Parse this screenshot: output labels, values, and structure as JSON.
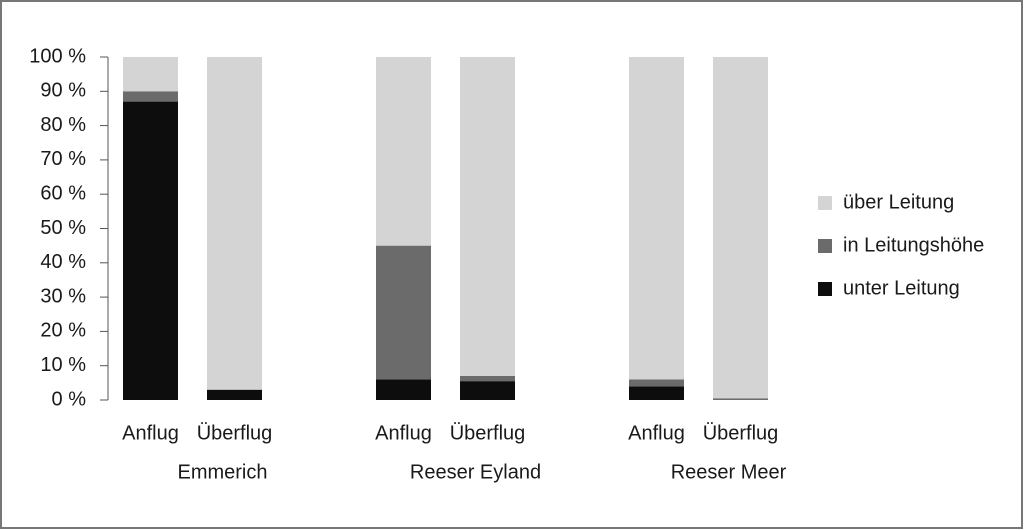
{
  "chart_data": {
    "type": "stacked_bar",
    "categories": [
      "Anflug",
      "Überflug",
      "Anflug",
      "Überflug",
      "Anflug",
      "Überflug"
    ],
    "groups": [
      "Emmerich",
      "Reeser Eyland",
      "Reeser Meer"
    ],
    "series": [
      {
        "name": "unter Leitung",
        "color": "#0d0d0d",
        "values": [
          87,
          3,
          6,
          5.5,
          4,
          0
        ]
      },
      {
        "name": "in Leitungshöhe",
        "color": "#6b6b6b",
        "values": [
          3,
          0,
          39,
          1.5,
          2,
          0.5
        ]
      },
      {
        "name": "über Leitung",
        "color": "#d4d4d4",
        "values": [
          10,
          97,
          55,
          93,
          94,
          99.5
        ]
      }
    ],
    "ylim": [
      0,
      100
    ],
    "yticks": [
      {
        "value": 0,
        "label": "0 %"
      },
      {
        "value": 10,
        "label": "10 %"
      },
      {
        "value": 20,
        "label": "20 %"
      },
      {
        "value": 30,
        "label": "30 %"
      },
      {
        "value": 40,
        "label": "40 %"
      },
      {
        "value": 50,
        "label": "50 %"
      },
      {
        "value": 60,
        "label": "60 %"
      },
      {
        "value": 70,
        "label": "70 %"
      },
      {
        "value": 80,
        "label": "80 %"
      },
      {
        "value": 90,
        "label": "90 %"
      },
      {
        "value": {
          "value": 100,
          "label": "100 %"
        },
        "label": "100 %"
      }
    ],
    "legend": "right"
  }
}
